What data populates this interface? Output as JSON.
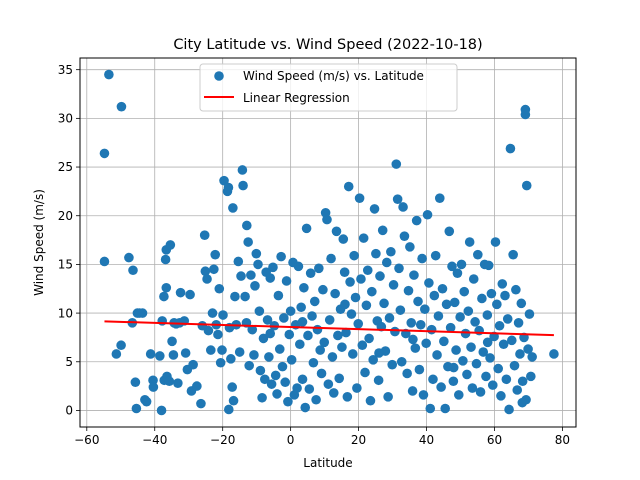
{
  "chart_data": {
    "type": "scatter",
    "title": "City Latitude vs. Wind Speed (2022-10-18)",
    "xlabel": "Latitude",
    "ylabel": "Wind Speed (m/s)",
    "xlim": [
      -62,
      84
    ],
    "ylim": [
      -1.7,
      36.2
    ],
    "xticks": [
      -60,
      -40,
      -20,
      0,
      20,
      40,
      60,
      80
    ],
    "yticks": [
      0,
      5,
      10,
      15,
      20,
      25,
      30,
      35
    ],
    "grid": true,
    "legend_position": "top-center",
    "colors": {
      "scatter": "#1f77b4",
      "regression": "#ff0000"
    },
    "series": [
      {
        "name": "Wind Speed (m/s) vs. Latitude",
        "kind": "scatter",
        "points": [
          [
            -54.8,
            26.4
          ],
          [
            -53.5,
            34.5
          ],
          [
            -49.8,
            31.2
          ],
          [
            -54.8,
            15.3
          ],
          [
            -51.3,
            5.8
          ],
          [
            -49.9,
            6.7
          ],
          [
            -47.6,
            15.7
          ],
          [
            -46.4,
            14.4
          ],
          [
            -46.6,
            9.0
          ],
          [
            -45.1,
            10.0
          ],
          [
            -43.6,
            10.0
          ],
          [
            -45.7,
            2.9
          ],
          [
            -45.4,
            0.2
          ],
          [
            -42.9,
            1.1
          ],
          [
            -42.4,
            0.9
          ],
          [
            -41.2,
            5.8
          ],
          [
            -40.5,
            3.1
          ],
          [
            -40.4,
            2.4
          ],
          [
            -38.5,
            5.6
          ],
          [
            -37.2,
            3.1
          ],
          [
            -36.6,
            16.5
          ],
          [
            -35.4,
            17.0
          ],
          [
            -36.8,
            15.5
          ],
          [
            -36.6,
            12.6
          ],
          [
            -37.3,
            11.7
          ],
          [
            -37.8,
            9.2
          ],
          [
            -36.4,
            3.5
          ],
          [
            -35.7,
            3.0
          ],
          [
            -34.9,
            7.1
          ],
          [
            -34.5,
            5.7
          ],
          [
            -34.3,
            9.0
          ],
          [
            -33.7,
            8.9
          ],
          [
            -33.2,
            2.8
          ],
          [
            -32.4,
            12.1
          ],
          [
            -32.7,
            9.0
          ],
          [
            -31.3,
            9.2
          ],
          [
            -30.9,
            5.9
          ],
          [
            -30.4,
            4.2
          ],
          [
            -29.6,
            11.9
          ],
          [
            -29.2,
            2.0
          ],
          [
            -28.7,
            4.7
          ],
          [
            -27.6,
            2.5
          ],
          [
            -26.4,
            0.7
          ],
          [
            -25.3,
            18.0
          ],
          [
            -25.1,
            14.3
          ],
          [
            -24.6,
            13.5
          ],
          [
            -24.2,
            8.2
          ],
          [
            -23.5,
            6.2
          ],
          [
            -23.0,
            10.0
          ],
          [
            -22.6,
            14.5
          ],
          [
            -22.2,
            16.0
          ],
          [
            -21.9,
            8.8
          ],
          [
            -21.4,
            7.8
          ],
          [
            -21.0,
            12.5
          ],
          [
            -20.6,
            4.9
          ],
          [
            -20.2,
            6.2
          ],
          [
            -19.9,
            9.8
          ],
          [
            -19.6,
            23.6
          ],
          [
            -18.6,
            22.5
          ],
          [
            -18.3,
            22.9
          ],
          [
            -18.0,
            8.5
          ],
          [
            -17.6,
            5.3
          ],
          [
            -17.2,
            2.4
          ],
          [
            -16.8,
            1.0
          ],
          [
            -18.2,
            0.1
          ],
          [
            -17.0,
            20.8
          ],
          [
            -16.4,
            11.7
          ],
          [
            -16.0,
            8.8
          ],
          [
            -15.4,
            15.3
          ],
          [
            -15.0,
            6.0
          ],
          [
            -14.6,
            13.8
          ],
          [
            -14.2,
            24.7
          ],
          [
            -14.0,
            23.1
          ],
          [
            -13.4,
            11.7
          ],
          [
            -13.0,
            9.0
          ],
          [
            -12.9,
            19.0
          ],
          [
            -12.5,
            17.3
          ],
          [
            -12.2,
            4.6
          ],
          [
            -11.7,
            13.9
          ],
          [
            -11.3,
            8.3
          ],
          [
            -10.8,
            5.7
          ],
          [
            -10.5,
            12.8
          ],
          [
            -10.1,
            16.1
          ],
          [
            -9.6,
            15.0
          ],
          [
            -9.2,
            10.2
          ],
          [
            -8.9,
            4.1
          ],
          [
            -8.4,
            1.3
          ],
          [
            -8.0,
            7.4
          ],
          [
            -7.6,
            3.2
          ],
          [
            -7.2,
            14.2
          ],
          [
            -6.8,
            9.3
          ],
          [
            -6.4,
            5.5
          ],
          [
            -6.0,
            13.6
          ],
          [
            -5.6,
            2.7
          ],
          [
            -5.2,
            14.7
          ],
          [
            -4.8,
            8.7
          ],
          [
            -4.4,
            3.6
          ],
          [
            -4.0,
            1.7
          ],
          [
            -3.6,
            11.8
          ],
          [
            -3.2,
            6.3
          ],
          [
            -2.8,
            15.8
          ],
          [
            -2.4,
            4.5
          ],
          [
            -2.0,
            9.5
          ],
          [
            -1.6,
            2.9
          ],
          [
            -1.2,
            13.3
          ],
          [
            -0.8,
            0.9
          ],
          [
            -0.4,
            7.8
          ],
          [
            0.0,
            10.2
          ],
          [
            0.3,
            5.2
          ],
          [
            0.7,
            15.2
          ],
          [
            1.1,
            1.6
          ],
          [
            1.5,
            8.8
          ],
          [
            1.9,
            2.3
          ],
          [
            2.3,
            14.8
          ],
          [
            2.7,
            6.8
          ],
          [
            3.1,
            10.6
          ],
          [
            3.5,
            3.2
          ],
          [
            3.9,
            12.6
          ],
          [
            4.3,
            0.3
          ],
          [
            4.7,
            18.7
          ],
          [
            5.1,
            7.7
          ],
          [
            5.5,
            2.2
          ],
          [
            5.9,
            14.1
          ],
          [
            6.3,
            9.7
          ],
          [
            6.7,
            4.9
          ],
          [
            7.1,
            11.2
          ],
          [
            7.5,
            1.1
          ],
          [
            7.9,
            8.3
          ],
          [
            8.3,
            14.6
          ],
          [
            8.7,
            6.2
          ],
          [
            9.1,
            3.8
          ],
          [
            9.5,
            12.4
          ],
          [
            9.9,
            7.0
          ],
          [
            10.3,
            20.3
          ],
          [
            10.7,
            19.6
          ],
          [
            11.1,
            2.7
          ],
          [
            11.5,
            9.3
          ],
          [
            11.9,
            15.6
          ],
          [
            12.3,
            5.5
          ],
          [
            12.7,
            1.8
          ],
          [
            13.1,
            12.0
          ],
          [
            13.5,
            18.4
          ],
          [
            13.9,
            7.7
          ],
          [
            14.3,
            3.3
          ],
          [
            14.7,
            10.4
          ],
          [
            15.1,
            6.5
          ],
          [
            15.5,
            17.6
          ],
          [
            15.9,
            14.2
          ],
          [
            16.3,
            8.0
          ],
          [
            16.7,
            1.4
          ],
          [
            17.1,
            23.0
          ],
          [
            17.5,
            13.2
          ],
          [
            17.9,
            9.9
          ],
          [
            18.3,
            5.8
          ],
          [
            18.7,
            15.9
          ],
          [
            19.1,
            11.6
          ],
          [
            19.5,
            2.3
          ],
          [
            19.9,
            8.9
          ],
          [
            20.3,
            21.8
          ],
          [
            20.7,
            13.5
          ],
          [
            21.1,
            6.7
          ],
          [
            21.5,
            17.7
          ],
          [
            21.9,
            3.9
          ],
          [
            22.3,
            10.8
          ],
          [
            22.7,
            14.4
          ],
          [
            23.1,
            7.4
          ],
          [
            23.5,
            1.0
          ],
          [
            23.9,
            12.2
          ],
          [
            24.3,
            5.2
          ],
          [
            24.7,
            20.7
          ],
          [
            25.1,
            16.1
          ],
          [
            25.5,
            9.2
          ],
          [
            25.9,
            3.1
          ],
          [
            26.3,
            13.8
          ],
          [
            26.7,
            8.6
          ],
          [
            27.1,
            18.5
          ],
          [
            27.5,
            11.0
          ],
          [
            27.9,
            6.1
          ],
          [
            28.3,
            15.2
          ],
          [
            28.7,
            1.4
          ],
          [
            29.1,
            9.5
          ],
          [
            29.5,
            16.3
          ],
          [
            29.9,
            4.7
          ],
          [
            30.3,
            12.9
          ],
          [
            30.7,
            8.1
          ],
          [
            31.1,
            25.3
          ],
          [
            31.5,
            21.7
          ],
          [
            31.9,
            14.6
          ],
          [
            32.3,
            10.3
          ],
          [
            32.7,
            5.0
          ],
          [
            33.1,
            20.9
          ],
          [
            33.5,
            17.9
          ],
          [
            33.9,
            7.9
          ],
          [
            34.3,
            3.8
          ],
          [
            34.7,
            12.3
          ],
          [
            35.1,
            16.8
          ],
          [
            35.5,
            9.0
          ],
          [
            35.9,
            2.0
          ],
          [
            36.3,
            13.9
          ],
          [
            36.7,
            6.4
          ],
          [
            37.1,
            19.5
          ],
          [
            37.5,
            11.2
          ],
          [
            37.9,
            4.2
          ],
          [
            38.3,
            8.8
          ],
          [
            38.7,
            15.6
          ],
          [
            39.1,
            1.6
          ],
          [
            39.5,
            10.4
          ],
          [
            39.9,
            6.9
          ],
          [
            40.3,
            20.1
          ],
          [
            40.7,
            13.1
          ],
          [
            41.1,
            0.2
          ],
          [
            41.5,
            8.3
          ],
          [
            41.9,
            3.2
          ],
          [
            42.3,
            11.8
          ],
          [
            42.7,
            15.9
          ],
          [
            43.1,
            5.7
          ],
          [
            43.5,
            9.7
          ],
          [
            43.9,
            21.8
          ],
          [
            44.3,
            2.4
          ],
          [
            44.7,
            12.5
          ],
          [
            45.1,
            7.1
          ],
          [
            45.5,
            0.2
          ],
          [
            45.9,
            10.9
          ],
          [
            46.3,
            4.5
          ],
          [
            46.7,
            18.4
          ],
          [
            47.1,
            8.5
          ],
          [
            47.5,
            14.8
          ],
          [
            47.9,
            3.0
          ],
          [
            48.3,
            11.1
          ],
          [
            48.7,
            6.2
          ],
          [
            49.1,
            14.1
          ],
          [
            49.5,
            1.6
          ],
          [
            49.9,
            9.6
          ],
          [
            50.3,
            15.0
          ],
          [
            50.7,
            5.1
          ],
          [
            51.1,
            12.2
          ],
          [
            51.5,
            7.9
          ],
          [
            51.9,
            3.7
          ],
          [
            52.3,
            10.2
          ],
          [
            52.7,
            17.3
          ],
          [
            53.1,
            6.5
          ],
          [
            53.5,
            2.3
          ],
          [
            53.9,
            13.5
          ],
          [
            54.3,
            9.1
          ],
          [
            54.7,
            4.8
          ],
          [
            55.1,
            16.0
          ],
          [
            55.5,
            8.2
          ],
          [
            55.9,
            1.9
          ],
          [
            56.3,
            11.5
          ],
          [
            56.7,
            6.0
          ],
          [
            57.1,
            15.0
          ],
          [
            57.5,
            3.5
          ],
          [
            57.9,
            9.8
          ],
          [
            58.3,
            14.9
          ],
          [
            58.7,
            5.4
          ],
          [
            59.1,
            12.0
          ],
          [
            59.5,
            2.6
          ],
          [
            59.9,
            7.6
          ],
          [
            60.3,
            17.3
          ],
          [
            60.7,
            10.9
          ],
          [
            61.1,
            4.3
          ],
          [
            61.5,
            8.7
          ],
          [
            61.9,
            1.5
          ],
          [
            62.3,
            13.0
          ],
          [
            62.7,
            6.8
          ],
          [
            63.1,
            11.8
          ],
          [
            63.5,
            3.2
          ],
          [
            63.9,
            9.4
          ],
          [
            64.3,
            0.1
          ],
          [
            64.7,
            26.9
          ],
          [
            65.1,
            7.2
          ],
          [
            65.5,
            16.0
          ],
          [
            65.9,
            4.6
          ],
          [
            66.3,
            12.4
          ],
          [
            66.7,
            2.1
          ],
          [
            67.1,
            9.0
          ],
          [
            67.5,
            5.8
          ],
          [
            67.9,
            11.0
          ],
          [
            68.3,
            3.0
          ],
          [
            68.7,
            7.5
          ],
          [
            69.1,
            30.4
          ],
          [
            69.1,
            30.9
          ],
          [
            69.5,
            23.1
          ],
          [
            69.3,
            1.1
          ],
          [
            69.9,
            6.3
          ],
          [
            70.3,
            9.9
          ],
          [
            70.7,
            3.5
          ],
          [
            71.1,
            5.5
          ],
          [
            77.5,
            5.8
          ],
          [
            68.2,
            0.8
          ],
          [
            -44.5,
            10.0
          ],
          [
            -38.0,
            0.0
          ],
          [
            -26.0,
            8.7
          ],
          [
            -6.0,
            7.9
          ],
          [
            3.5,
            9.1
          ],
          [
            16.0,
            10.9
          ],
          [
            26.0,
            5.9
          ],
          [
            36.0,
            7.3
          ],
          [
            48.0,
            4.4
          ],
          [
            58.0,
            7.0
          ]
        ]
      },
      {
        "name": "Linear Regression",
        "kind": "line",
        "x": [
          -54.8,
          77.5
        ],
        "y": [
          9.15,
          7.74
        ]
      }
    ]
  }
}
